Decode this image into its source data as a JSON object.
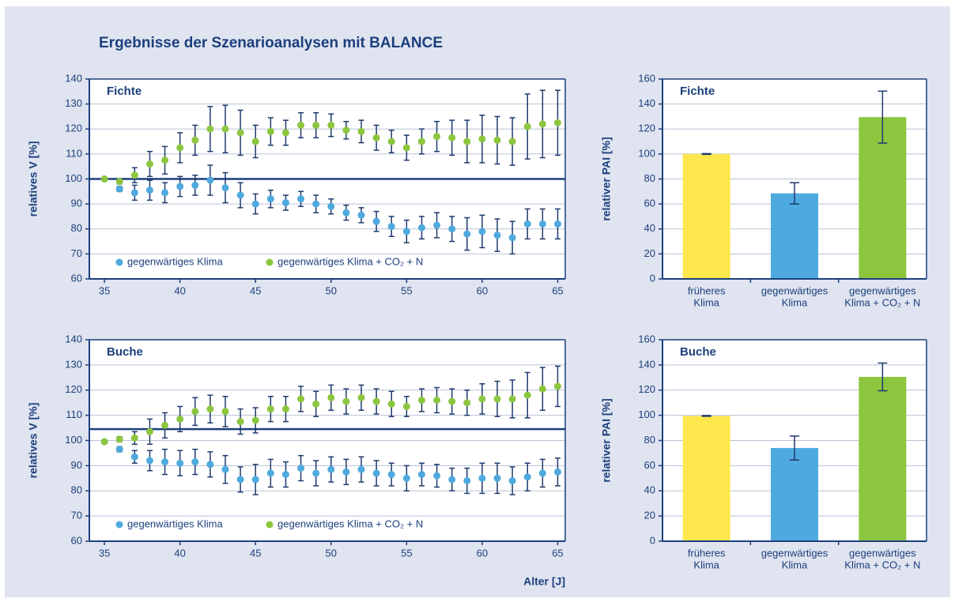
{
  "title": "Ergebnisse der Szenarioanalysen mit BALANCE",
  "chart_data": [
    {
      "type": "scatter",
      "title": "Fichte",
      "ylabel": "relatives V [%]",
      "legend": "lower left",
      "grid": true,
      "hline": 100,
      "xlim": [
        34,
        65.5
      ],
      "xticks": [
        35,
        40,
        45,
        50,
        55,
        60,
        65
      ],
      "ylim": [
        60,
        140
      ],
      "yticks": [
        60,
        70,
        80,
        90,
        100,
        110,
        120,
        130,
        140
      ],
      "x": [
        35,
        36,
        37,
        38,
        39,
        40,
        41,
        42,
        43,
        44,
        45,
        46,
        47,
        48,
        49,
        50,
        51,
        52,
        53,
        54,
        55,
        56,
        57,
        58,
        59,
        60,
        61,
        62,
        63,
        64,
        65
      ],
      "series": [
        {
          "name": "gegenwärtiges Klima",
          "color": "#4eaade",
          "values": [
            100,
            96,
            94.5,
            95.5,
            94.5,
            97,
            97.5,
            99.5,
            96.5,
            93.5,
            90,
            92,
            90.5,
            92,
            90,
            89,
            86.5,
            85.5,
            83,
            81,
            79,
            80.5,
            81.5,
            80,
            78,
            79,
            77.5,
            76.5,
            82,
            82,
            82
          ],
          "errors": [
            0,
            1,
            3,
            4,
            4,
            4,
            4,
            6,
            6,
            5,
            4,
            3.5,
            3,
            3,
            3.5,
            3,
            3,
            3,
            4,
            4,
            4.5,
            4.5,
            5,
            5,
            6.5,
            6.5,
            6.5,
            6.5,
            6,
            6,
            6
          ]
        },
        {
          "name": "gegenwärtiges Klima + CO₂ + N",
          "color": "#8cc63f",
          "values": [
            100,
            99,
            101.5,
            106,
            107.5,
            112.5,
            115.5,
            120,
            120,
            118.5,
            115,
            119,
            118.5,
            121.5,
            121.5,
            121.5,
            119.5,
            119,
            116.5,
            115,
            112.5,
            115,
            117,
            116.5,
            115,
            116,
            115.5,
            115,
            121,
            122,
            122.5
          ],
          "errors": [
            0,
            1,
            3,
            5,
            5.5,
            6,
            6,
            9,
            9.5,
            9,
            6.5,
            5.5,
            5,
            5,
            5,
            4.5,
            3.5,
            4.5,
            5,
            4.5,
            5,
            5,
            6,
            7,
            8.5,
            9.5,
            9.5,
            9.5,
            13,
            13.5,
            13
          ]
        }
      ]
    },
    {
      "type": "bar",
      "title": "Fichte",
      "ylabel": "relativer  PAI [%]",
      "grid": true,
      "ylim": [
        0,
        160
      ],
      "yticks": [
        0,
        20,
        40,
        60,
        80,
        100,
        120,
        140,
        160
      ],
      "categories": [
        [
          "früheres",
          "Klima"
        ],
        [
          "gegenwärtiges",
          "Klima"
        ],
        [
          "gegenwärtiges",
          "Klima + CO₂ + N"
        ]
      ],
      "values": [
        100,
        68.5,
        129.5
      ],
      "errors": [
        0.3,
        8.5,
        20.8
      ],
      "colors": [
        "#fde74c",
        "#4eaade",
        "#8cc63f"
      ]
    },
    {
      "type": "scatter",
      "title": "Buche",
      "ylabel": "relatives V [%]",
      "xlabel": "Alter [J]",
      "legend": "lower left",
      "grid": true,
      "hline": 104.5,
      "xlim": [
        34,
        65.5
      ],
      "xticks": [
        35,
        40,
        45,
        50,
        55,
        60,
        65
      ],
      "ylim": [
        60,
        140
      ],
      "yticks": [
        60,
        70,
        80,
        90,
        100,
        110,
        120,
        130,
        140
      ],
      "x": [
        35,
        36,
        37,
        38,
        39,
        40,
        41,
        42,
        43,
        44,
        45,
        46,
        47,
        48,
        49,
        50,
        51,
        52,
        53,
        54,
        55,
        56,
        57,
        58,
        59,
        60,
        61,
        62,
        63,
        64,
        65
      ],
      "series": [
        {
          "name": "gegenwärtiges Klima",
          "color": "#4eaade",
          "values": [
            99.5,
            96.5,
            93.5,
            92,
            91.5,
            91,
            91.5,
            90.5,
            88.5,
            84.5,
            84.5,
            87,
            86.5,
            89,
            87,
            88.5,
            87.5,
            88.5,
            87,
            86.5,
            85,
            86.5,
            86,
            84.5,
            84,
            85,
            85,
            84,
            85.5,
            87,
            87.5
          ],
          "errors": [
            0,
            1,
            2.5,
            4,
            5,
            5,
            5,
            5,
            5.5,
            5,
            6,
            5.5,
            5,
            5,
            5,
            5,
            5,
            5,
            5,
            4.5,
            5,
            4.5,
            4.5,
            4.5,
            5,
            6,
            6,
            5.5,
            5.5,
            5.5,
            5.5
          ]
        },
        {
          "name": "gegenwärtiges Klima + CO₂ + N",
          "color": "#8cc63f",
          "values": [
            99.5,
            100.5,
            101,
            103.5,
            106,
            108.5,
            111.5,
            112.5,
            111.5,
            107.5,
            108,
            112.5,
            112.5,
            116.5,
            114.5,
            117,
            115.5,
            117,
            115.5,
            114.5,
            113.5,
            116,
            116,
            115.5,
            115,
            116.5,
            116.5,
            116.5,
            118,
            120.5,
            121.5
          ],
          "errors": [
            0,
            1,
            2.5,
            5,
            5,
            5,
            5.5,
            5.5,
            6,
            5,
            5,
            5,
            5,
            5,
            5,
            5,
            5,
            5,
            5,
            5,
            4,
            4.5,
            5,
            5,
            5,
            6,
            7,
            7.5,
            9,
            8.5,
            8
          ]
        }
      ]
    },
    {
      "type": "bar",
      "title": "Buche",
      "ylabel": "relativer  PAI [%]",
      "grid": true,
      "ylim": [
        0,
        160
      ],
      "yticks": [
        0,
        20,
        40,
        60,
        80,
        100,
        120,
        140,
        160
      ],
      "categories": [
        [
          "früheres",
          "Klima"
        ],
        [
          "gegenwärtiges",
          "Klima"
        ],
        [
          "gegenwärtiges",
          "Klima + CO₂ + N"
        ]
      ],
      "values": [
        99.5,
        74,
        130.5
      ],
      "errors": [
        0.3,
        9.5,
        11
      ],
      "colors": [
        "#fde74c",
        "#4eaade",
        "#8cc63f"
      ]
    }
  ]
}
